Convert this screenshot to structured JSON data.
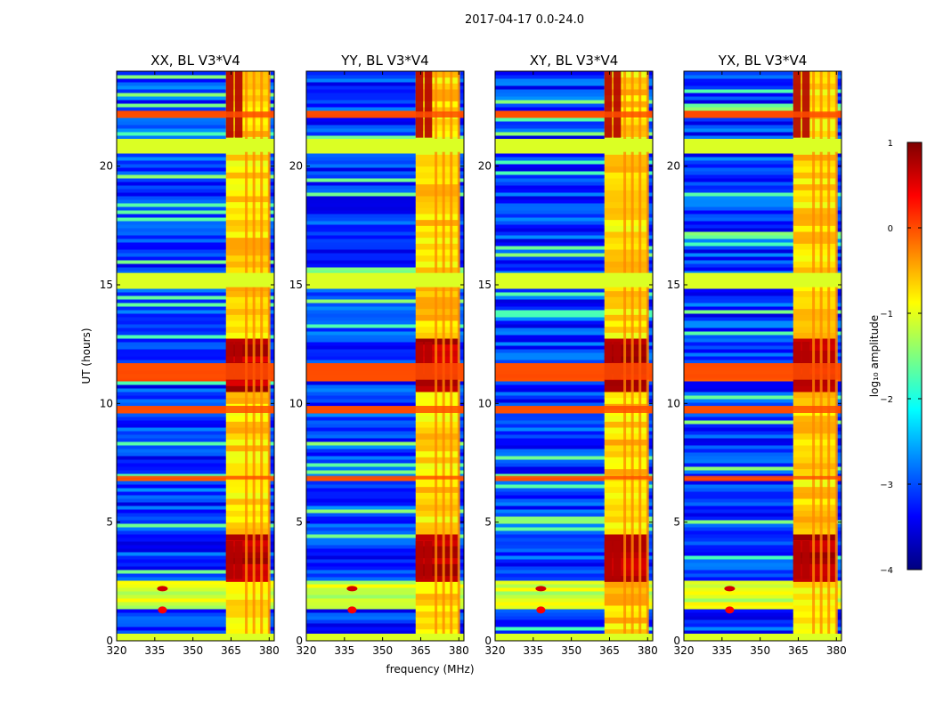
{
  "chart_data": {
    "type": "heatmap",
    "suptitle": "2017-04-17 0.0-24.0",
    "xlabel": "frequency (MHz)",
    "ylabel": "UT (hours)",
    "xlim": [
      320,
      382
    ],
    "ylim": [
      0,
      24
    ],
    "xticks": [
      320,
      335,
      350,
      365,
      380
    ],
    "yticks": [
      0,
      5,
      10,
      15,
      20
    ],
    "panels": [
      {
        "title": "XX, BL V3*V4"
      },
      {
        "title": "YY, BL V3*V4"
      },
      {
        "title": "XY, BL V3*V4"
      },
      {
        "title": "YX, BL V3*V4"
      }
    ],
    "colorbar": {
      "label": "log₁₀ amplitude",
      "range": [
        -4,
        1
      ],
      "ticks": [
        1,
        0,
        -1,
        -2,
        -3,
        -4
      ],
      "tick_labels": [
        "1",
        "0",
        "−1",
        "−2",
        "−3",
        "−4"
      ],
      "colormap": [
        "#00007f",
        "#0000ff",
        "#007fff",
        "#00ffff",
        "#7fff7f",
        "#ffff00",
        "#ff7f00",
        "#ff0000",
        "#7f0000"
      ]
    },
    "rfi_band_mhz": [
      363,
      380
    ],
    "strong_rfi_mhz": [
      [
        363,
        366
      ],
      [
        366.5,
        369.5
      ]
    ],
    "rfi_columns_mhz": [
      371,
      374,
      377,
      380
    ],
    "flagged_time_bands_ut": [
      [
        20.6,
        21.15
      ],
      [
        14.9,
        15.5
      ],
      [
        0.0,
        0.3
      ]
    ],
    "high_time_bands_ut": [
      [
        22.05,
        22.3
      ],
      [
        11.0,
        11.7
      ],
      [
        9.6,
        9.9
      ],
      [
        6.8,
        6.95
      ]
    ],
    "burst_time_ut": [
      1.3,
      2.6
    ],
    "burst_freq_mhz": 338
  }
}
